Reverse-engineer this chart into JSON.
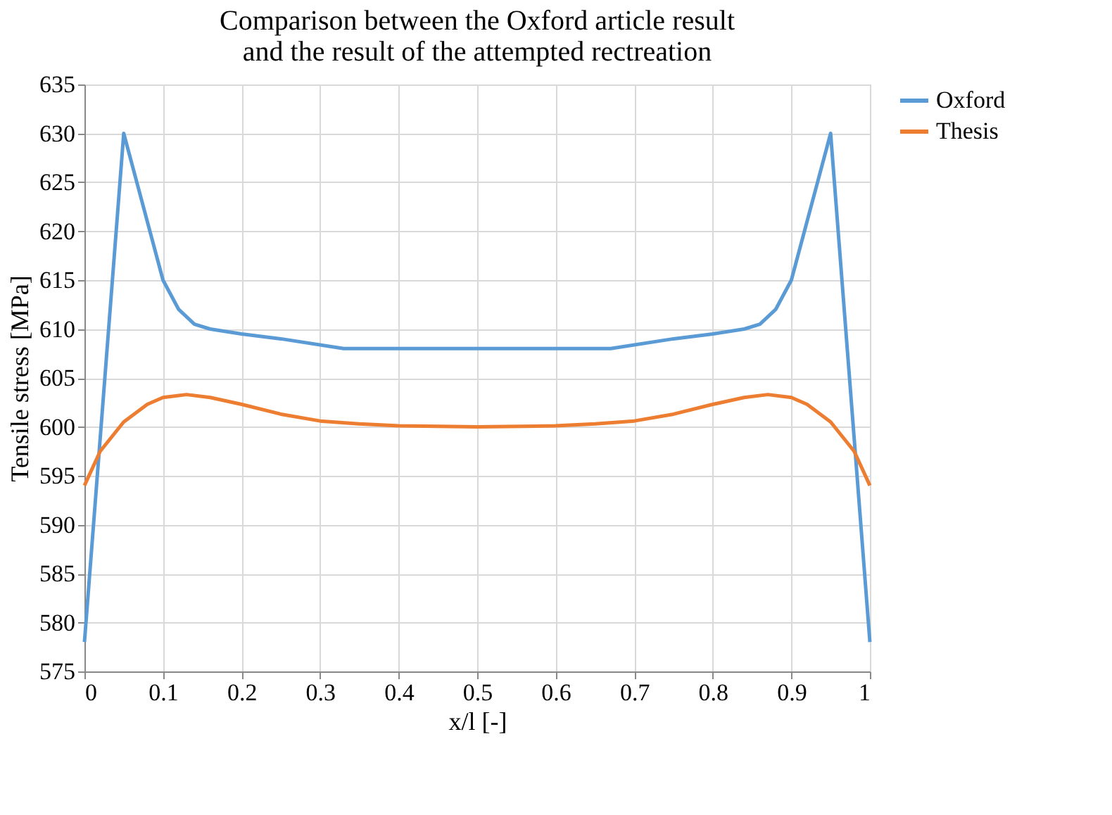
{
  "chart_data": {
    "type": "line",
    "title": "Comparison between the Oxford article result\nand the result of the attempted rectreation",
    "xlabel": "x/l [-]",
    "ylabel": "Tensile stress [MPa]",
    "xlim": [
      0,
      1
    ],
    "xticks": [
      0,
      0.1,
      0.2,
      0.3,
      0.4,
      0.5,
      0.6,
      0.7,
      0.8,
      0.9,
      1
    ],
    "ylim": [
      575,
      635
    ],
    "yticks": [
      575,
      580,
      585,
      590,
      595,
      600,
      605,
      610,
      615,
      620,
      625,
      630,
      635
    ],
    "grid": true,
    "legend": "right",
    "marker": "none",
    "line_style": "solid",
    "series": [
      {
        "name": "Oxford",
        "color": "#5b9bd5",
        "x": [
          0,
          0.05,
          0.1,
          0.12,
          0.14,
          0.16,
          0.2,
          0.25,
          0.33,
          0.5,
          0.67,
          0.75,
          0.8,
          0.84,
          0.86,
          0.88,
          0.9,
          0.95,
          1
        ],
        "values": [
          578,
          630,
          615,
          612,
          610.5,
          610,
          609.5,
          609,
          608,
          608,
          608,
          609,
          609.5,
          610,
          610.5,
          612,
          615,
          630,
          578
        ]
      },
      {
        "name": "Thesis",
        "color": "#ed7d31",
        "x": [
          0,
          0.02,
          0.05,
          0.08,
          0.1,
          0.13,
          0.16,
          0.2,
          0.25,
          0.3,
          0.35,
          0.4,
          0.5,
          0.6,
          0.65,
          0.7,
          0.75,
          0.8,
          0.84,
          0.87,
          0.9,
          0.92,
          0.95,
          0.98,
          1
        ],
        "values": [
          594,
          597.5,
          600.5,
          602.3,
          603,
          603.3,
          603,
          602.3,
          601.3,
          600.6,
          600.3,
          600.1,
          600,
          600.1,
          600.3,
          600.6,
          601.3,
          602.3,
          603,
          603.3,
          603,
          602.3,
          600.5,
          597.5,
          594
        ]
      }
    ]
  }
}
